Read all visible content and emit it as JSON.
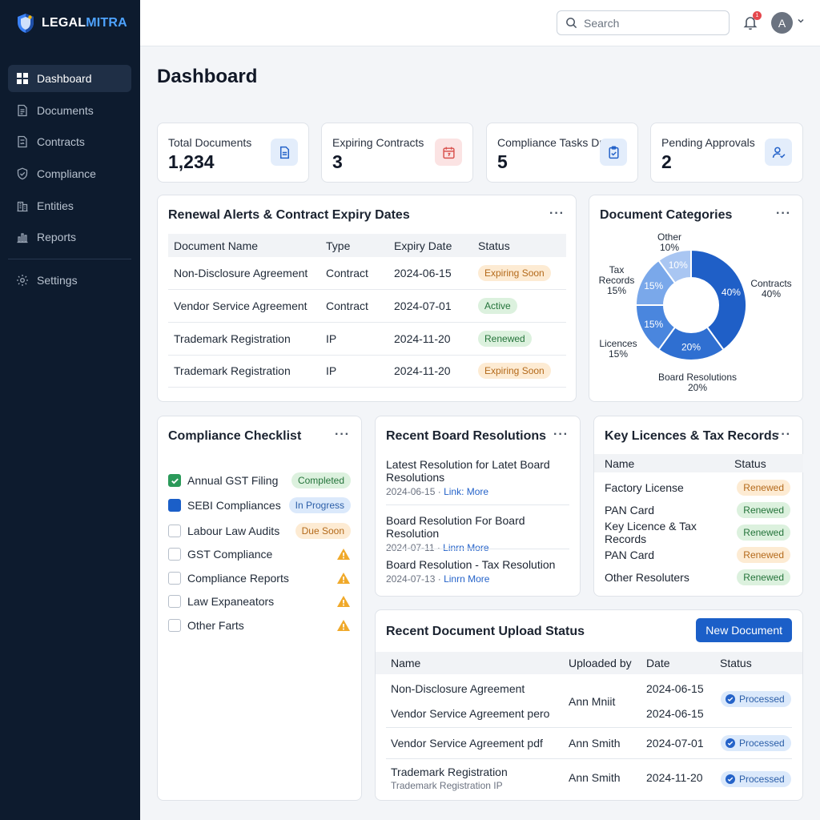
{
  "brand": {
    "name_part1": "LEGAL",
    "name_part2": "MITRA"
  },
  "sidebar": {
    "items": [
      {
        "label": "Dashboard",
        "icon": "grid-icon",
        "active": true
      },
      {
        "label": "Documents",
        "icon": "document-icon"
      },
      {
        "label": "Contracts",
        "icon": "contract-icon"
      },
      {
        "label": "Compliance",
        "icon": "shield-icon"
      },
      {
        "label": "Entities",
        "icon": "building-icon"
      },
      {
        "label": "Reports",
        "icon": "bar-chart-icon"
      }
    ],
    "settings": {
      "label": "Settings",
      "icon": "gear-icon"
    }
  },
  "topbar": {
    "search_placeholder": "Search",
    "notification_count": "1",
    "avatar_initial": "A"
  },
  "page_title": "Dashboard",
  "stats": [
    {
      "label": "Total Documents",
      "value": "1,234",
      "icon": "document-icon",
      "color": "#2563c9"
    },
    {
      "label": "Expiring Contracts",
      "value": "3",
      "icon": "calendar-icon",
      "color": "#d9534f"
    },
    {
      "label": "Compliance Tasks Due",
      "value": "5",
      "icon": "clipboard-check-icon",
      "color": "#2563c9"
    },
    {
      "label": "Pending Approvals",
      "value": "2",
      "icon": "user-check-icon",
      "color": "#2563c9"
    }
  ],
  "renewals": {
    "title": "Renewal Alerts & Contract Expiry Dates",
    "columns": [
      "Document Name",
      "Type",
      "Expiry Date",
      "Status"
    ],
    "rows": [
      {
        "name": "Non-Disclosure Agreement",
        "type": "Contract",
        "date": "2024-06-15",
        "status": "Expiring Soon",
        "tone": "orange"
      },
      {
        "name": "Vendor Service Agreement",
        "type": "Contract",
        "date": "2024-07-01",
        "status": "Active",
        "tone": "green"
      },
      {
        "name": "Trademark Registration",
        "type": "IP",
        "date": "2024-11-20",
        "status": "Renewed",
        "tone": "green"
      },
      {
        "name": "Trademark Registration",
        "type": "IP",
        "date": "2024-11-20",
        "status": "Expiring Soon",
        "tone": "orange"
      }
    ]
  },
  "categories": {
    "title": "Document Categories",
    "segments": [
      {
        "name": "Contracts",
        "value": 40,
        "pct_label": "40%",
        "color": "#1f5fc7"
      },
      {
        "name": "Board Resolutions",
        "value": 20,
        "pct_label": "20%",
        "color": "#2f6fd1"
      },
      {
        "name": "Licences",
        "value": 15,
        "pct_label": "15%",
        "color": "#4a86de"
      },
      {
        "name": "Tax Records",
        "value": 15,
        "pct_label": "15%",
        "color": "#7aa8ea"
      },
      {
        "name": "Other",
        "value": 10,
        "pct_label": "10%",
        "color": "#a9c6f2"
      }
    ],
    "labels": {
      "other": [
        "Other",
        "10%"
      ],
      "tax": [
        "Tax",
        "Records",
        "15%"
      ],
      "contracts": [
        "Contracts",
        "40%"
      ],
      "licences": [
        "Licences",
        "15%"
      ],
      "board": [
        "Board Resolutions",
        "20%"
      ]
    }
  },
  "checklist": {
    "title": "Compliance Checklist",
    "items": [
      {
        "label": "Annual GST Filing",
        "state": "done",
        "badge": "Completed",
        "tone": "green"
      },
      {
        "label": "SEBI Compliances",
        "state": "prog",
        "badge": "In Progress",
        "tone": "blue"
      },
      {
        "label": "Labour Law Audits",
        "state": "none",
        "badge": "Due Soon",
        "tone": "orange"
      },
      {
        "label": "GST Compliance",
        "state": "none",
        "warn": true
      },
      {
        "label": "Compliance Reports",
        "state": "none",
        "warn": true
      },
      {
        "label": "Law Expaneators",
        "state": "none",
        "warn": true
      },
      {
        "label": "Other Farts",
        "state": "none",
        "warn": true
      }
    ]
  },
  "resolutions": {
    "title": "Recent Board Resolutions",
    "items": [
      {
        "title": "Latest Resolution for Latet Board Resolutions",
        "date": "2024-06-15",
        "link": "Link: More"
      },
      {
        "title": "Board Resolution For Board Resolution",
        "date": "2024-07-11",
        "link": "Linrn More"
      },
      {
        "title": "Board Resolution - Tax Resolution",
        "date": "2024-07-13",
        "link": "Linrn More"
      }
    ]
  },
  "licences": {
    "title": "Key Licences & Tax Records",
    "columns": [
      "Name",
      "Status"
    ],
    "rows": [
      {
        "name": "Factory License",
        "status": "Renewed",
        "tone": "orange"
      },
      {
        "name": "PAN Card",
        "status": "Renewed",
        "tone": "green"
      },
      {
        "name": "Key Licence & Tax Records",
        "status": "Renewed",
        "tone": "green"
      },
      {
        "name": "PAN Card",
        "status": "Renewed",
        "tone": "orange"
      },
      {
        "name": "Other Resoluters",
        "status": "Renewed",
        "tone": "green"
      }
    ]
  },
  "uploads": {
    "title": "Recent Document Upload Status",
    "button": "New Document",
    "columns": [
      "Name",
      "Uploaded by",
      "Date",
      "Status"
    ],
    "rows": [
      {
        "name": "Non-Disclosure Agreement",
        "name2": "Vendor Service Agreement pero",
        "by": "Ann Mniit",
        "date": "2024-06-15",
        "date2": "2024-06-15",
        "status": "Processed"
      },
      {
        "name": "Vendor Service Agreement pdf",
        "by": "Ann Smith",
        "date": "2024-07-01",
        "status": "Processed"
      },
      {
        "name": "Trademark Registration",
        "sub": "Trademark Registration IP",
        "by": "Ann Smith",
        "date": "2024-11-20",
        "status": "Processed"
      }
    ]
  }
}
